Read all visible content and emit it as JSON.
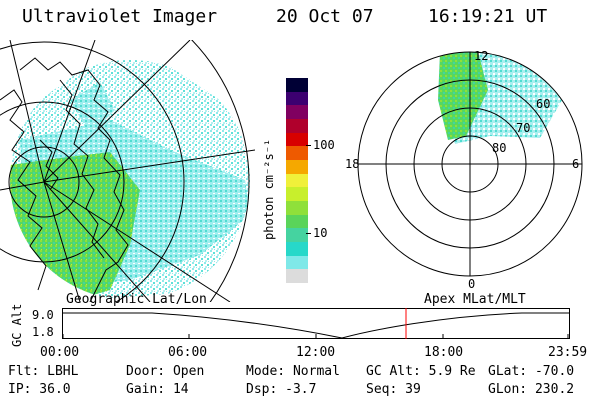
{
  "header": {
    "instrument": "Ultraviolet Imager",
    "date": "20 Oct 07",
    "time": "16:19:21 UT"
  },
  "colorbar": {
    "unit_label": "photon cm⁻²s⁻¹",
    "ticks": [
      "100",
      "10"
    ],
    "scale": "log",
    "colors": [
      "#dcdcdc",
      "#7fe8e8",
      "#27d8c9",
      "#45d3a0",
      "#5ad45a",
      "#8fe03a",
      "#c8ef2c",
      "#f0f03a",
      "#f5a800",
      "#ee5a00",
      "#d80000",
      "#b0002c",
      "#800060",
      "#3c0070",
      "#000035"
    ]
  },
  "polar_plot": {
    "mlt_labels": {
      "top": "12",
      "right": "6",
      "bottom": "0",
      "left": "18"
    },
    "lat_labels": [
      "60",
      "70",
      "80"
    ]
  },
  "altitude_plot": {
    "left_title": "Geographic Lat/Lon",
    "right_title": "Apex MLat/MLT",
    "ylabel": "GC Alt",
    "yticks": [
      "9.0",
      "1.8"
    ],
    "xticks": [
      "00:00",
      "06:00",
      "12:00",
      "18:00",
      "23:59"
    ],
    "marker_color": "#ff0000"
  },
  "status": {
    "row1": {
      "filter": "Flt: LBHL",
      "door": "Door: Open",
      "mode": "Mode: Normal",
      "gc_alt": "GC Alt: 5.9 Re",
      "glat": "GLat: -70.0"
    },
    "row2": {
      "ip": "IP: 36.0",
      "gain": "Gain: 14",
      "dsp": "Dsp:   -3.7",
      "seq": "Seq: 39",
      "glon": "GLon: 230.2"
    }
  }
}
